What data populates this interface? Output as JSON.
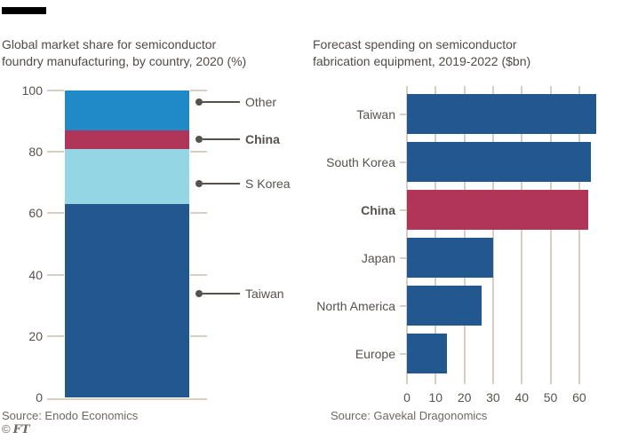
{
  "chart_data": [
    {
      "type": "bar",
      "subtype": "stacked-column",
      "title": "Global market share for semiconductor foundry manufacturing, by country, 2020 (%)",
      "title_lines": [
        "Global market share for semiconductor",
        "foundry manufacturing, by country, 2020 (%)"
      ],
      "ylim": [
        0,
        100
      ],
      "yticks": [
        0,
        20,
        40,
        60,
        80,
        100
      ],
      "segments_bottom_to_top": [
        {
          "label": "Taiwan",
          "value": 63,
          "color": "#225790",
          "emphasis": false
        },
        {
          "label": "S Korea",
          "value": 18,
          "color": "#94d6e4",
          "emphasis": false
        },
        {
          "label": "China",
          "value": 6,
          "color": "#b13459",
          "emphasis": true
        },
        {
          "label": "Other",
          "value": 13,
          "color": "#2089c8",
          "emphasis": false
        }
      ],
      "source": "Source: Enodo Economics"
    },
    {
      "type": "bar",
      "subtype": "horizontal-bars",
      "title": "Forecast spending on semiconductor fabrication equipment, 2019-2022 ($bn)",
      "title_lines": [
        "Forecast spending on semiconductor",
        "fabrication equipment, 2019-2022 ($bn)"
      ],
      "xlim": [
        0,
        68
      ],
      "xticks": [
        0,
        10,
        20,
        30,
        40,
        50,
        60
      ],
      "grid": true,
      "bars": [
        {
          "label": "Taiwan",
          "value": 66,
          "color": "#225790",
          "emphasis": false
        },
        {
          "label": "South Korea",
          "value": 64,
          "color": "#225790",
          "emphasis": false
        },
        {
          "label": "China",
          "value": 63,
          "color": "#b13459",
          "emphasis": true
        },
        {
          "label": "Japan",
          "value": 30,
          "color": "#225790",
          "emphasis": false
        },
        {
          "label": "North America",
          "value": 26,
          "color": "#225790",
          "emphasis": false
        },
        {
          "label": "Europe",
          "value": 14,
          "color": "#225790",
          "emphasis": false
        }
      ],
      "source": "Source: Gavekal Dragonomics"
    }
  ],
  "footer": {
    "copyright_symbol": "©",
    "ft_logo": "FT"
  },
  "colors": {
    "dark_blue": "#225790",
    "medium_blue": "#2089c8",
    "light_blue": "#94d6e4",
    "crimson": "#b13459",
    "gridline": "#d9cec2",
    "label_text": "#56524d",
    "title_text": "#4f4b47",
    "source_text": "#6e6862",
    "top_bar": "#000000"
  }
}
